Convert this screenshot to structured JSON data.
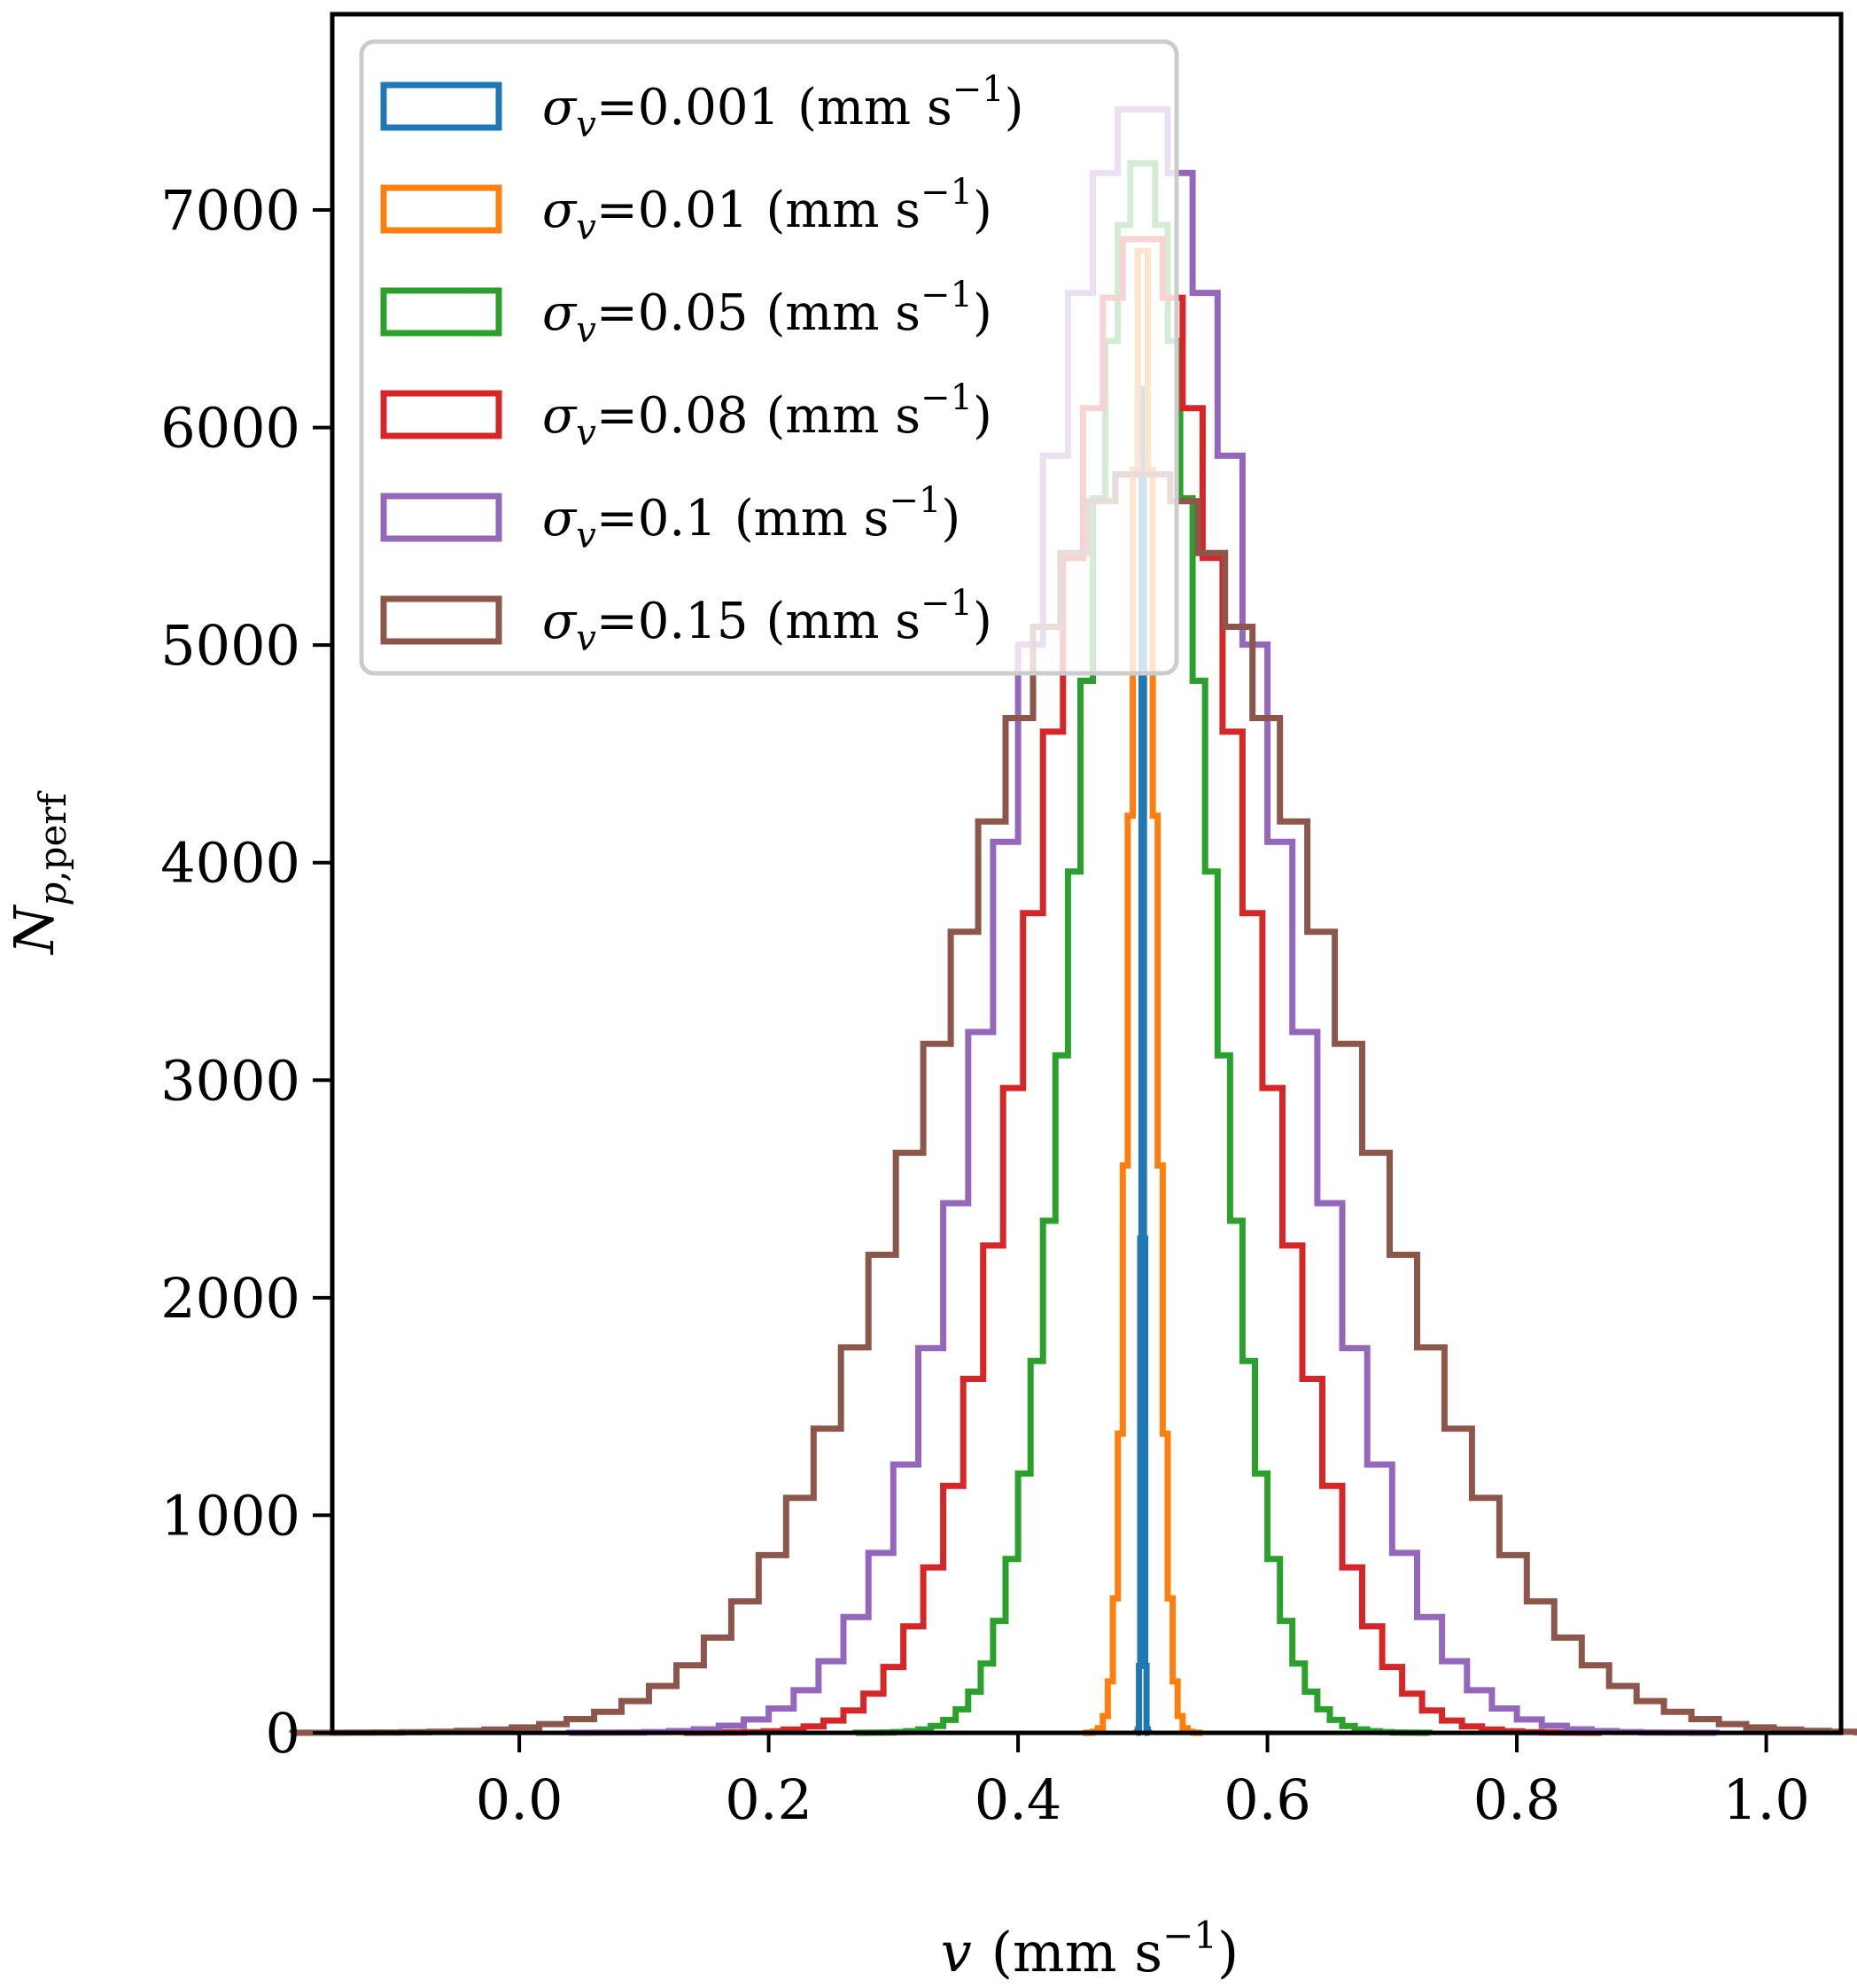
{
  "chart_data": {
    "type": "histogram",
    "xlabel": "v (mm s⁻¹)",
    "ylabel": "Np,perf",
    "xlim": [
      -0.15,
      1.06
    ],
    "ylim": [
      0,
      7900
    ],
    "xticks": [
      0.0,
      0.2,
      0.4,
      0.6,
      0.8,
      1.0
    ],
    "xtick_labels": [
      "0.0",
      "0.2",
      "0.4",
      "0.6",
      "0.8",
      "1.0"
    ],
    "yticks": [
      0,
      1000,
      2000,
      3000,
      4000,
      5000,
      6000,
      7000
    ],
    "ytick_labels": [
      "0",
      "1000",
      "2000",
      "3000",
      "4000",
      "5000",
      "6000",
      "7000"
    ],
    "legend_position": "upper-left",
    "grid": false,
    "series": [
      {
        "name": "σv=0.001 (mm s⁻¹)",
        "sigma_label": "0.001",
        "color": "#1f77b4",
        "mean": 0.5,
        "std": 0.001,
        "bin_width": 0.001,
        "peak": 7000
      },
      {
        "name": "σv=0.01 (mm s⁻¹)",
        "sigma_label": "0.01",
        "color": "#ff7f0e",
        "mean": 0.5,
        "std": 0.01,
        "bin_width": 0.004,
        "peak": 6950
      },
      {
        "name": "σv=0.05 (mm s⁻¹)",
        "sigma_label": "0.05",
        "color": "#2ca02c",
        "mean": 0.5,
        "std": 0.05,
        "bin_width": 0.01,
        "peak": 7250
      },
      {
        "name": "σv=0.08 (mm s⁻¹)",
        "sigma_label": "0.08",
        "color": "#d62728",
        "mean": 0.5,
        "std": 0.08,
        "bin_width": 0.016,
        "peak": 6900
      },
      {
        "name": "σv=0.1 (mm s⁻¹)",
        "sigma_label": "0.1",
        "color": "#9467bd",
        "mean": 0.5,
        "std": 0.1,
        "bin_width": 0.02,
        "peak": 7500
      },
      {
        "name": "σv=0.15 (mm s⁻¹)",
        "sigma_label": "0.15",
        "color": "#8c564b",
        "mean": 0.5,
        "std": 0.15,
        "bin_width": 0.022,
        "peak": 5800
      }
    ]
  }
}
